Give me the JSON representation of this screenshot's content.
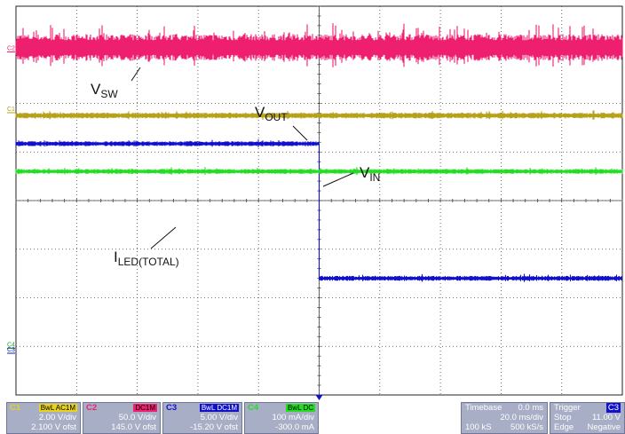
{
  "chart_data": {
    "type": "line",
    "title": "",
    "xlabel": "",
    "ylabel": "",
    "x_divisions": 10,
    "y_divisions": 8,
    "time_per_div_ms": 20,
    "trigger_time_ms": 0,
    "grid": true,
    "series": [
      {
        "name": "V_SW",
        "label_main": "V",
        "label_sub": "SW",
        "channel": "C2",
        "color": "#ee1f6e",
        "x_ms": [
          -100,
          100
        ],
        "y_div": [
          3.15,
          3.15
        ],
        "thickness_div": 0.55,
        "noise": "high"
      },
      {
        "name": "V_OUT",
        "label_main": "V",
        "label_sub": "OUT",
        "channel": "C1",
        "color": "#b5a11a",
        "x_ms": [
          -100,
          100
        ],
        "y_div": [
          1.75,
          1.75
        ],
        "thickness_div": 0.12,
        "noise": "medium"
      },
      {
        "name": "V_IN",
        "label_main": "V",
        "label_sub": "IN",
        "channel": "C3",
        "color": "#1111cc",
        "x_ms": [
          -100,
          0,
          0,
          100
        ],
        "y_div": [
          1.17,
          1.17,
          -1.6,
          -1.6
        ],
        "thickness_div": 0.1,
        "noise": "medium"
      },
      {
        "name": "I_LED(TOTAL)",
        "label_main": "I",
        "label_sub": "LED(TOTAL)",
        "channel": "C4",
        "color": "#22dd22",
        "x_ms": [
          -100,
          100
        ],
        "y_div": [
          0.6,
          0.6
        ],
        "thickness_div": 0.1,
        "noise": "medium"
      }
    ],
    "markers": [
      {
        "label": "C2",
        "color": "#ee1f6e",
        "y_div": 3.15
      },
      {
        "label": "C1",
        "color": "#b5a11a",
        "y_div": 1.9
      },
      {
        "label": "C4",
        "color": "#22aa22",
        "y_div": -2.95
      },
      {
        "label": "C3",
        "color": "#1111cc",
        "y_div": -3.05
      }
    ]
  },
  "channels": [
    {
      "id": "C1",
      "coupling": "BwL AC1M",
      "scale": "2.00 V/div",
      "offset": "2.100 V ofst",
      "color": "#e6d21f"
    },
    {
      "id": "C2",
      "coupling": "DC1M",
      "scale": "50.0 V/div",
      "offset": "145.0 V ofst",
      "color": "#ee1f6e"
    },
    {
      "id": "C3",
      "coupling": "BwL DC1M",
      "scale": "5.00 V/div",
      "offset": "-15.20 V ofst",
      "color": "#1111cc"
    },
    {
      "id": "C4",
      "coupling": "BwL DC",
      "scale": "100 mA/div",
      "offset": "-300.0 mA",
      "color": "#22dd22"
    }
  ],
  "timebase": {
    "label": "Timebase",
    "delay": "0.0 ms",
    "per_div": "20.0 ms/div",
    "samples": "100 kS",
    "rate": "500 kS/s"
  },
  "trigger": {
    "label": "Trigger",
    "channel": "C3",
    "mode": "Stop",
    "level": "11.00 V",
    "type": "Edge",
    "slope": "Negative"
  }
}
